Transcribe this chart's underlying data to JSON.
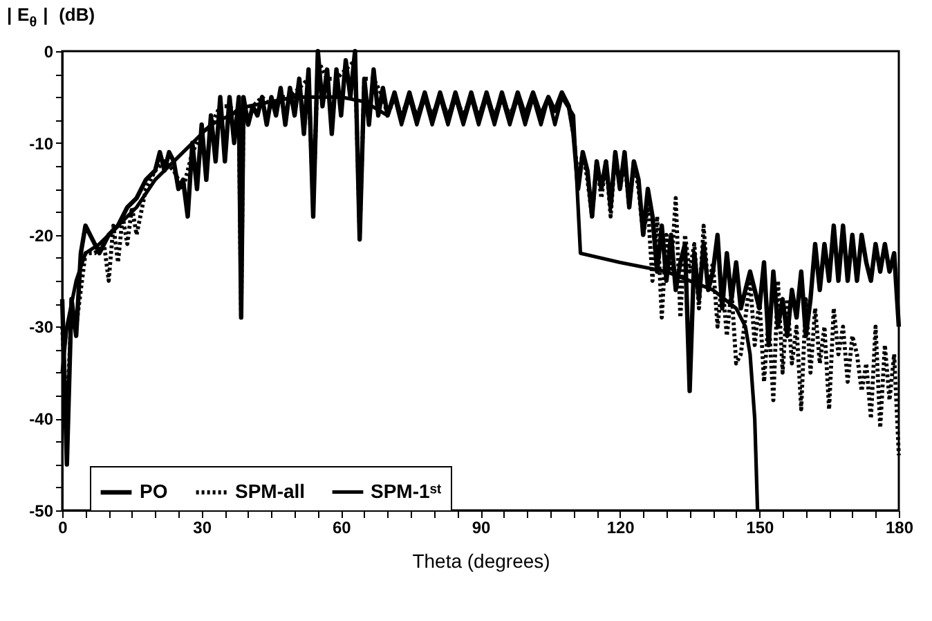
{
  "chart_data": {
    "type": "line",
    "xlabel": "Theta (degrees)",
    "ylabel": "| E$_{θ}$ |  (dB)",
    "xlim": [
      0,
      180
    ],
    "ylim": [
      -50,
      0
    ],
    "xticks": [
      0,
      {
        "value": 5,
        "label": null
      },
      {
        "value": 10,
        "label": null
      },
      {
        "value": 15,
        "label": null
      },
      {
        "value": 20,
        "label": null
      },
      {
        "value": 25,
        "label": null
      },
      30,
      {
        "value": 35,
        "label": null
      },
      {
        "value": 40,
        "label": null
      },
      {
        "value": 45,
        "label": null
      },
      {
        "value": 50,
        "label": null
      },
      {
        "value": 55,
        "label": null
      },
      60,
      {
        "value": 65,
        "label": null
      },
      {
        "value": 70,
        "label": null
      },
      {
        "value": 75,
        "label": null
      },
      {
        "value": 80,
        "label": null
      },
      {
        "value": 85,
        "label": null
      },
      90,
      {
        "value": 95,
        "label": null
      },
      {
        "value": 100,
        "label": null
      },
      {
        "value": 105,
        "label": null
      },
      {
        "value": 110,
        "label": null
      },
      {
        "value": 115,
        "label": null
      },
      120,
      {
        "value": 125,
        "label": null
      },
      {
        "value": 130,
        "label": null
      },
      {
        "value": 135,
        "label": null
      },
      {
        "value": 140,
        "label": null
      },
      {
        "value": 145,
        "label": null
      },
      150,
      {
        "value": 155,
        "label": null
      },
      {
        "value": 160,
        "label": null
      },
      {
        "value": 165,
        "label": null
      },
      {
        "value": 170,
        "label": null
      },
      {
        "value": 175,
        "label": null
      },
      180
    ],
    "yticks": [
      -50,
      {
        "value": -47.5,
        "label": null
      },
      {
        "value": -45,
        "label": null
      },
      {
        "value": -42.5,
        "label": null
      },
      -40,
      {
        "value": -37.5,
        "label": null
      },
      {
        "value": -35,
        "label": null
      },
      {
        "value": -32.5,
        "label": null
      },
      -30,
      {
        "value": -27.5,
        "label": null
      },
      {
        "value": -25,
        "label": null
      },
      {
        "value": -22.5,
        "label": null
      },
      -20,
      {
        "value": -17.5,
        "label": null
      },
      {
        "value": -15,
        "label": null
      },
      {
        "value": -12.5,
        "label": null
      },
      -10,
      {
        "value": -7.5,
        "label": null
      },
      {
        "value": -5,
        "label": null
      },
      {
        "value": -2.5,
        "label": null
      },
      0
    ],
    "grid": false,
    "legend": "bottom",
    "marker": "none",
    "series": [
      {
        "name": "PO",
        "color": "#000000",
        "line_style": "solid",
        "x": [
          0,
          1,
          2,
          3,
          4,
          5,
          6,
          8,
          10,
          12,
          14,
          16,
          18,
          20,
          21,
          22,
          23,
          24,
          25,
          26,
          27,
          28,
          29,
          30,
          31,
          32,
          33,
          34,
          35,
          36,
          37,
          38,
          38.5,
          39,
          40,
          41,
          42,
          43,
          44,
          45,
          46,
          47,
          48,
          49,
          50,
          51,
          52,
          53,
          54,
          55,
          56,
          57,
          58,
          59,
          60,
          61,
          62,
          63,
          64,
          65,
          66,
          67,
          68,
          69,
          70,
          71.5,
          73,
          74.7,
          76.3,
          78,
          79.6,
          81.3,
          83,
          84.6,
          86.3,
          88,
          89.6,
          91.3,
          93,
          94.6,
          96.3,
          98,
          99.6,
          101.3,
          103,
          104.6,
          106,
          107.5,
          109,
          110,
          111,
          112,
          113,
          114,
          115,
          116,
          117,
          118,
          119,
          120,
          121,
          122,
          123,
          124,
          125,
          126,
          127,
          128,
          129,
          130,
          131,
          132,
          133,
          134,
          135,
          136,
          137,
          138,
          139,
          140,
          141,
          142,
          143,
          144,
          145,
          146,
          147,
          148,
          149,
          150,
          151,
          152,
          153,
          154,
          155,
          156,
          157,
          158,
          159,
          160,
          161,
          162,
          163,
          164,
          165,
          166,
          167,
          168,
          169,
          170,
          171,
          172,
          173,
          174,
          175,
          176,
          177,
          178,
          179,
          180
        ],
        "values": [
          -27,
          -45,
          -27,
          -31,
          -22,
          -19,
          -20,
          -22,
          -20,
          -19,
          -17,
          -16,
          -14,
          -13,
          -11,
          -13,
          -11,
          -12,
          -15,
          -14,
          -18,
          -10,
          -15,
          -8,
          -14,
          -7,
          -12,
          -5,
          -12,
          -5,
          -10,
          -5,
          -29,
          -5,
          -8,
          -6,
          -7,
          -5,
          -8,
          -5,
          -7,
          -4,
          -8,
          -4,
          -7,
          -3,
          -9,
          -2,
          -18,
          0,
          -6,
          -2,
          -9,
          -2,
          -7,
          -1,
          -5,
          0,
          -20.5,
          -3,
          -8,
          -2,
          -7,
          -4,
          -7,
          -4.5,
          -7.5,
          -4.5,
          -7.5,
          -4.5,
          -7.5,
          -4.5,
          -7.5,
          -4.5,
          -7.5,
          -4.5,
          -7.5,
          -4.5,
          -7.5,
          -4.5,
          -7.5,
          -4.5,
          -7,
          -4.5,
          -7,
          -5,
          -6.5,
          -4.5,
          -6,
          -9,
          -15,
          -11,
          -13,
          -18,
          -12,
          -15,
          -12,
          -17,
          -11,
          -15,
          -11,
          -17,
          -12,
          -14,
          -20,
          -15,
          -18,
          -24,
          -19,
          -25,
          -20,
          -26,
          -23,
          -21,
          -37,
          -22,
          -27,
          -21,
          -26,
          -24,
          -20,
          -28,
          -22,
          -27,
          -23,
          -28,
          -26,
          -24,
          -26,
          -28,
          -23,
          -32,
          -24,
          -30,
          -27,
          -31,
          -26,
          -29,
          -24,
          -31,
          -27,
          -21,
          -26,
          -21,
          -25,
          -19,
          -25,
          -19,
          -25,
          -20,
          -25,
          -20,
          -23,
          -25,
          -21,
          -24,
          -21,
          -24,
          -22,
          -30
        ]
      },
      {
        "name": "SPM-all",
        "color": "#000000",
        "line_style": "dotted",
        "x": [
          0,
          1,
          2,
          3,
          5,
          7,
          9,
          10,
          11,
          12,
          13,
          14,
          15,
          16,
          18,
          20,
          22,
          24,
          26,
          28,
          30,
          32,
          34,
          36,
          38,
          38.5,
          39,
          41,
          43,
          45,
          47,
          49,
          51,
          53,
          54,
          55,
          57,
          59,
          61,
          63,
          64,
          65,
          67,
          69,
          70,
          71.5,
          73,
          74.7,
          76.3,
          78,
          79.6,
          81.3,
          83,
          84.6,
          86.3,
          88,
          89.6,
          91.3,
          93,
          94.6,
          96.3,
          98,
          99.6,
          101.3,
          103,
          104.6,
          106,
          107.5,
          109,
          110,
          111,
          112,
          113,
          114,
          115,
          116,
          117,
          118,
          119,
          120,
          121,
          122,
          123,
          124,
          125,
          126,
          127,
          128,
          129,
          130,
          131,
          132,
          133,
          134,
          135,
          136,
          137,
          138,
          139,
          140,
          141,
          142,
          143,
          144,
          145,
          146,
          147,
          148,
          149,
          150,
          151,
          152,
          153,
          154,
          155,
          156,
          157,
          158,
          159,
          160,
          161,
          162,
          163,
          164,
          165,
          166,
          167,
          168,
          169,
          170,
          171,
          172,
          173,
          174,
          175,
          176,
          177,
          178,
          179,
          180
        ],
        "values": [
          -30,
          -40,
          -28,
          -30,
          -22,
          -22,
          -21,
          -25,
          -19,
          -23,
          -18,
          -21,
          -17,
          -20,
          -15,
          -13,
          -12,
          -13,
          -15,
          -11,
          -9,
          -8,
          -6,
          -6,
          -7,
          -29,
          -6,
          -6,
          -5,
          -6,
          -5,
          -5,
          -4,
          -3,
          -17,
          -1,
          -3,
          -3,
          -2,
          -1,
          -20,
          -3,
          -3,
          -5,
          -7,
          -5,
          -7,
          -5,
          -7,
          -5,
          -7,
          -5,
          -7,
          -5,
          -7,
          -5,
          -7,
          -5,
          -7,
          -5,
          -7,
          -5,
          -7,
          -5,
          -7,
          -5,
          -6.5,
          -5,
          -6,
          -9,
          -14,
          -11,
          -14,
          -18,
          -12,
          -16,
          -12,
          -18,
          -11,
          -15,
          -12,
          -17,
          -12,
          -15,
          -20,
          -17,
          -25,
          -18,
          -29,
          -20,
          -24,
          -16,
          -29,
          -20,
          -24,
          -21,
          -28,
          -19,
          -26,
          -23,
          -30,
          -25,
          -31,
          -26,
          -34,
          -33,
          -29,
          -25,
          -32,
          -27,
          -36,
          -29,
          -38,
          -25,
          -35,
          -27,
          -34,
          -30,
          -39,
          -27,
          -35,
          -28,
          -34,
          -30,
          -39,
          -28,
          -33,
          -30,
          -36,
          -31,
          -33,
          -37,
          -34,
          -40,
          -30,
          -41,
          -32,
          -38,
          -33,
          -44
        ]
      },
      {
        "name": "SPM-1ˢᵗ",
        "color": "#000000",
        "line_style": "solid",
        "x": [
          0,
          1,
          3,
          5,
          8,
          12,
          16,
          20,
          24,
          28,
          32,
          36,
          40,
          45,
          50,
          55,
          60,
          65,
          70,
          71.5,
          73,
          74.7,
          76.3,
          78,
          79.6,
          81.3,
          83,
          84.6,
          86.3,
          88,
          89.6,
          91.3,
          93,
          94.6,
          96.3,
          98,
          99.6,
          101.3,
          103,
          104.6,
          106,
          107.5,
          110,
          111.5,
          120,
          130,
          140,
          145,
          147,
          148,
          149,
          149.6
        ],
        "values": [
          -35,
          -30,
          -25,
          -22,
          -21,
          -19,
          -17,
          -14,
          -12,
          -10,
          -8,
          -7,
          -6,
          -5.5,
          -5,
          -5,
          -5,
          -5.5,
          -7,
          -5,
          -8,
          -5,
          -8,
          -5,
          -8,
          -5,
          -8,
          -5,
          -8,
          -5,
          -8,
          -5,
          -8,
          -5,
          -8,
          -5,
          -8,
          -5,
          -8,
          -5,
          -8,
          -5,
          -7,
          -22,
          -23,
          -24,
          -26,
          -28,
          -30,
          -33,
          -40,
          -50
        ]
      }
    ]
  }
}
